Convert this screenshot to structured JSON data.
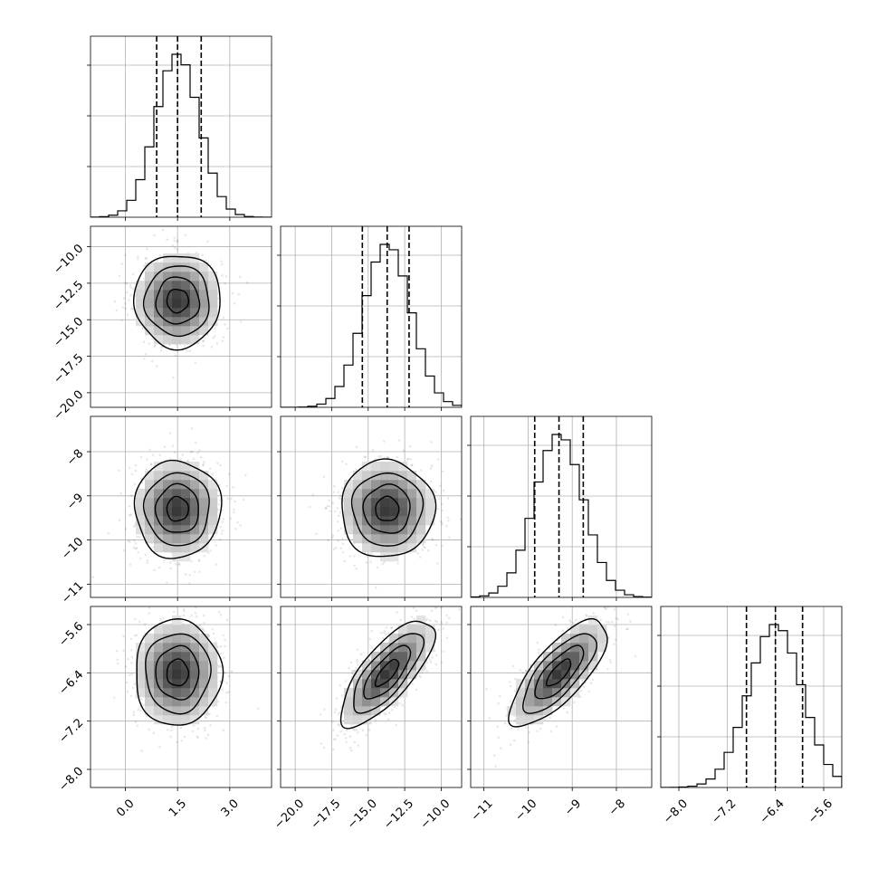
{
  "chart_data": {
    "type": "corner",
    "parameters": [
      {
        "range": [
          -1.0,
          4.2
        ],
        "ticks": [
          0.0,
          1.5,
          3.0
        ],
        "tick_labels": [
          "0.0",
          "1.5",
          "3.0"
        ],
        "quantiles": [
          0.9,
          1.5,
          2.18
        ],
        "median": 1.5,
        "sigma": 0.62
      },
      {
        "range": [
          -21.0,
          -8.6
        ],
        "ticks": [
          -20.0,
          -17.5,
          -15.0,
          -12.5,
          -10.0
        ],
        "tick_labels": [
          "−20.0",
          "−17.5",
          "−15.0",
          "−12.5",
          "−10.0"
        ],
        "quantiles": [
          -15.4,
          -13.7,
          -12.2
        ],
        "median": -13.7,
        "sigma": 1.6
      },
      {
        "range": [
          -11.3,
          -7.2
        ],
        "ticks": [
          -11,
          -10,
          -9,
          -8
        ],
        "tick_labels": [
          "−11",
          "−10",
          "−9",
          "−8"
        ],
        "quantiles": [
          -9.85,
          -9.3,
          -8.75
        ],
        "median": -9.3,
        "sigma": 0.55
      },
      {
        "range": [
          -8.3,
          -5.3
        ],
        "ticks": [
          -8.0,
          -7.2,
          -6.4,
          -5.6
        ],
        "tick_labels": [
          "−8.0",
          "−7.2",
          "−6.4",
          "−5.6"
        ],
        "quantiles": [
          -6.88,
          -6.4,
          -5.95
        ],
        "median": -6.4,
        "sigma": 0.44
      }
    ],
    "correlations": [
      {
        "pair": [
          1,
          0
        ],
        "rho": 0.0
      },
      {
        "pair": [
          2,
          0
        ],
        "rho": 0.0
      },
      {
        "pair": [
          2,
          1
        ],
        "rho": 0.0
      },
      {
        "pair": [
          3,
          0
        ],
        "rho": 0.0
      },
      {
        "pair": [
          3,
          1
        ],
        "rho": 0.75
      },
      {
        "pair": [
          3,
          2
        ],
        "rho": 0.75
      }
    ],
    "contour_levels_sigma": [
      0.5,
      1.0,
      1.5,
      2.0
    ],
    "histogram_bins": 20,
    "grid": true,
    "histogram_y_tick_labels": "hidden"
  }
}
